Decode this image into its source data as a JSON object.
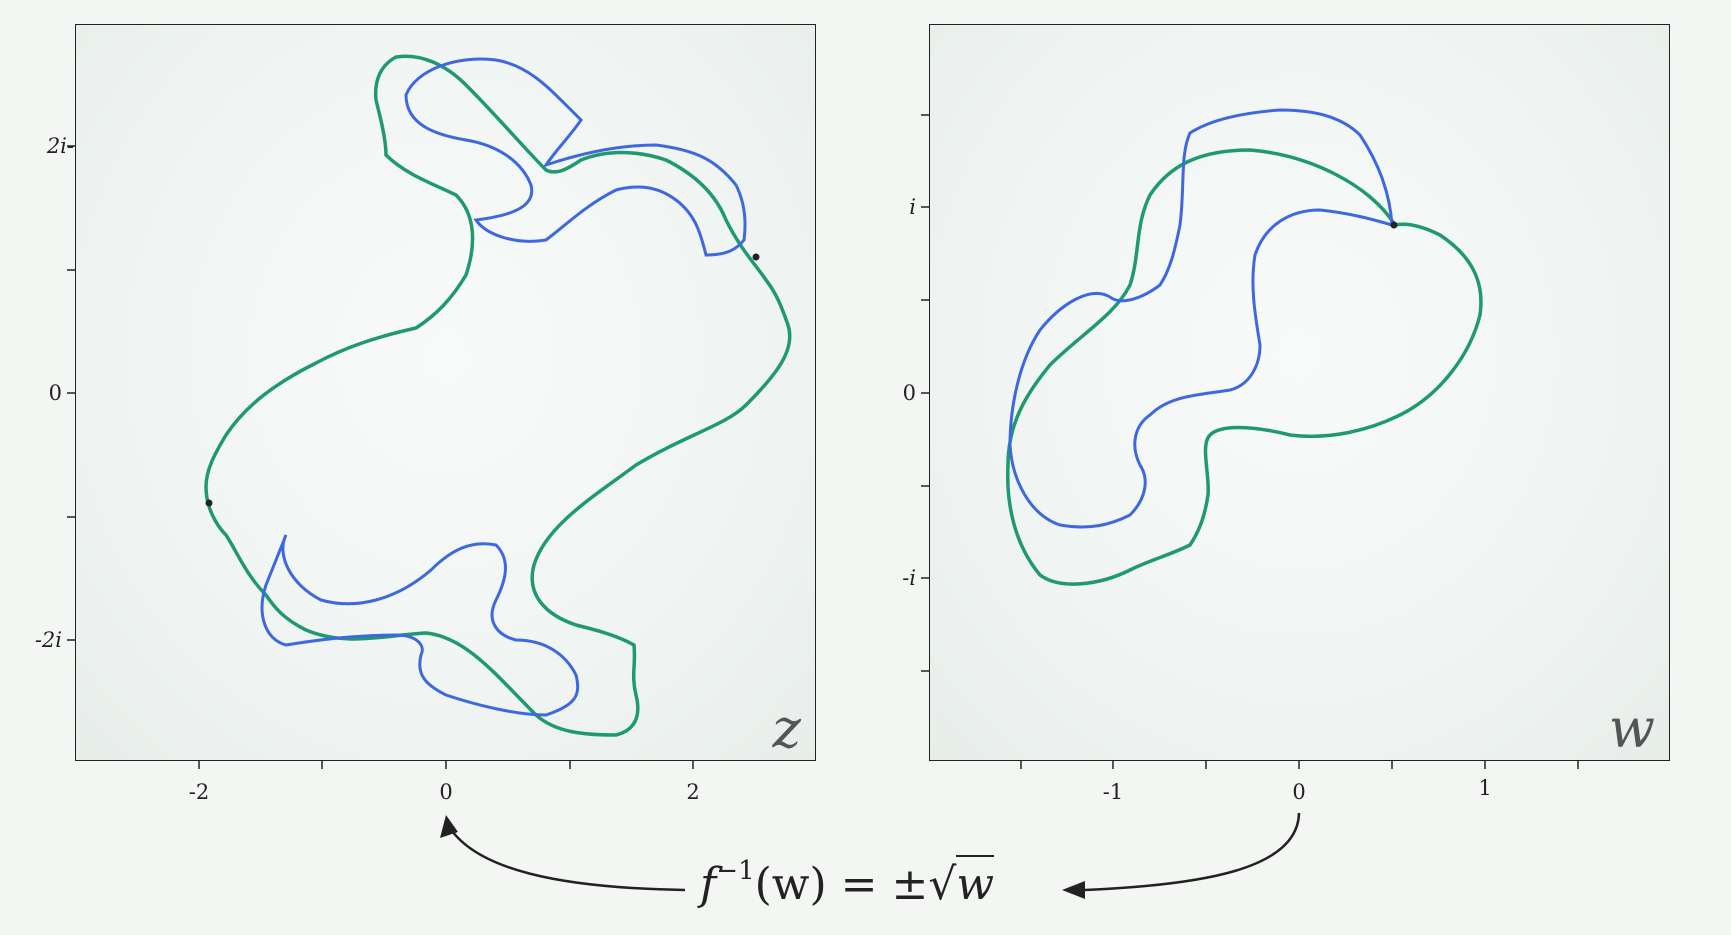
{
  "panels": {
    "z": {
      "label": "z",
      "x_ticks": [
        "-2",
        "0",
        "2"
      ],
      "y_ticks": [
        "2i-",
        "0",
        "-2i"
      ]
    },
    "w": {
      "label": "w",
      "x_ticks": [
        "-1",
        "0",
        "1"
      ],
      "y_ticks": [
        "i",
        "0",
        "-i"
      ]
    }
  },
  "formula": {
    "f": "f",
    "exponent": "−1",
    "args": "(w) = ±",
    "sqrt_sign": "√",
    "radicand": "w"
  },
  "colors": {
    "green_curve": "#1f9a6f",
    "blue_curve": "#3d68e0",
    "axis": "#222222",
    "arrow": "#222222"
  }
}
